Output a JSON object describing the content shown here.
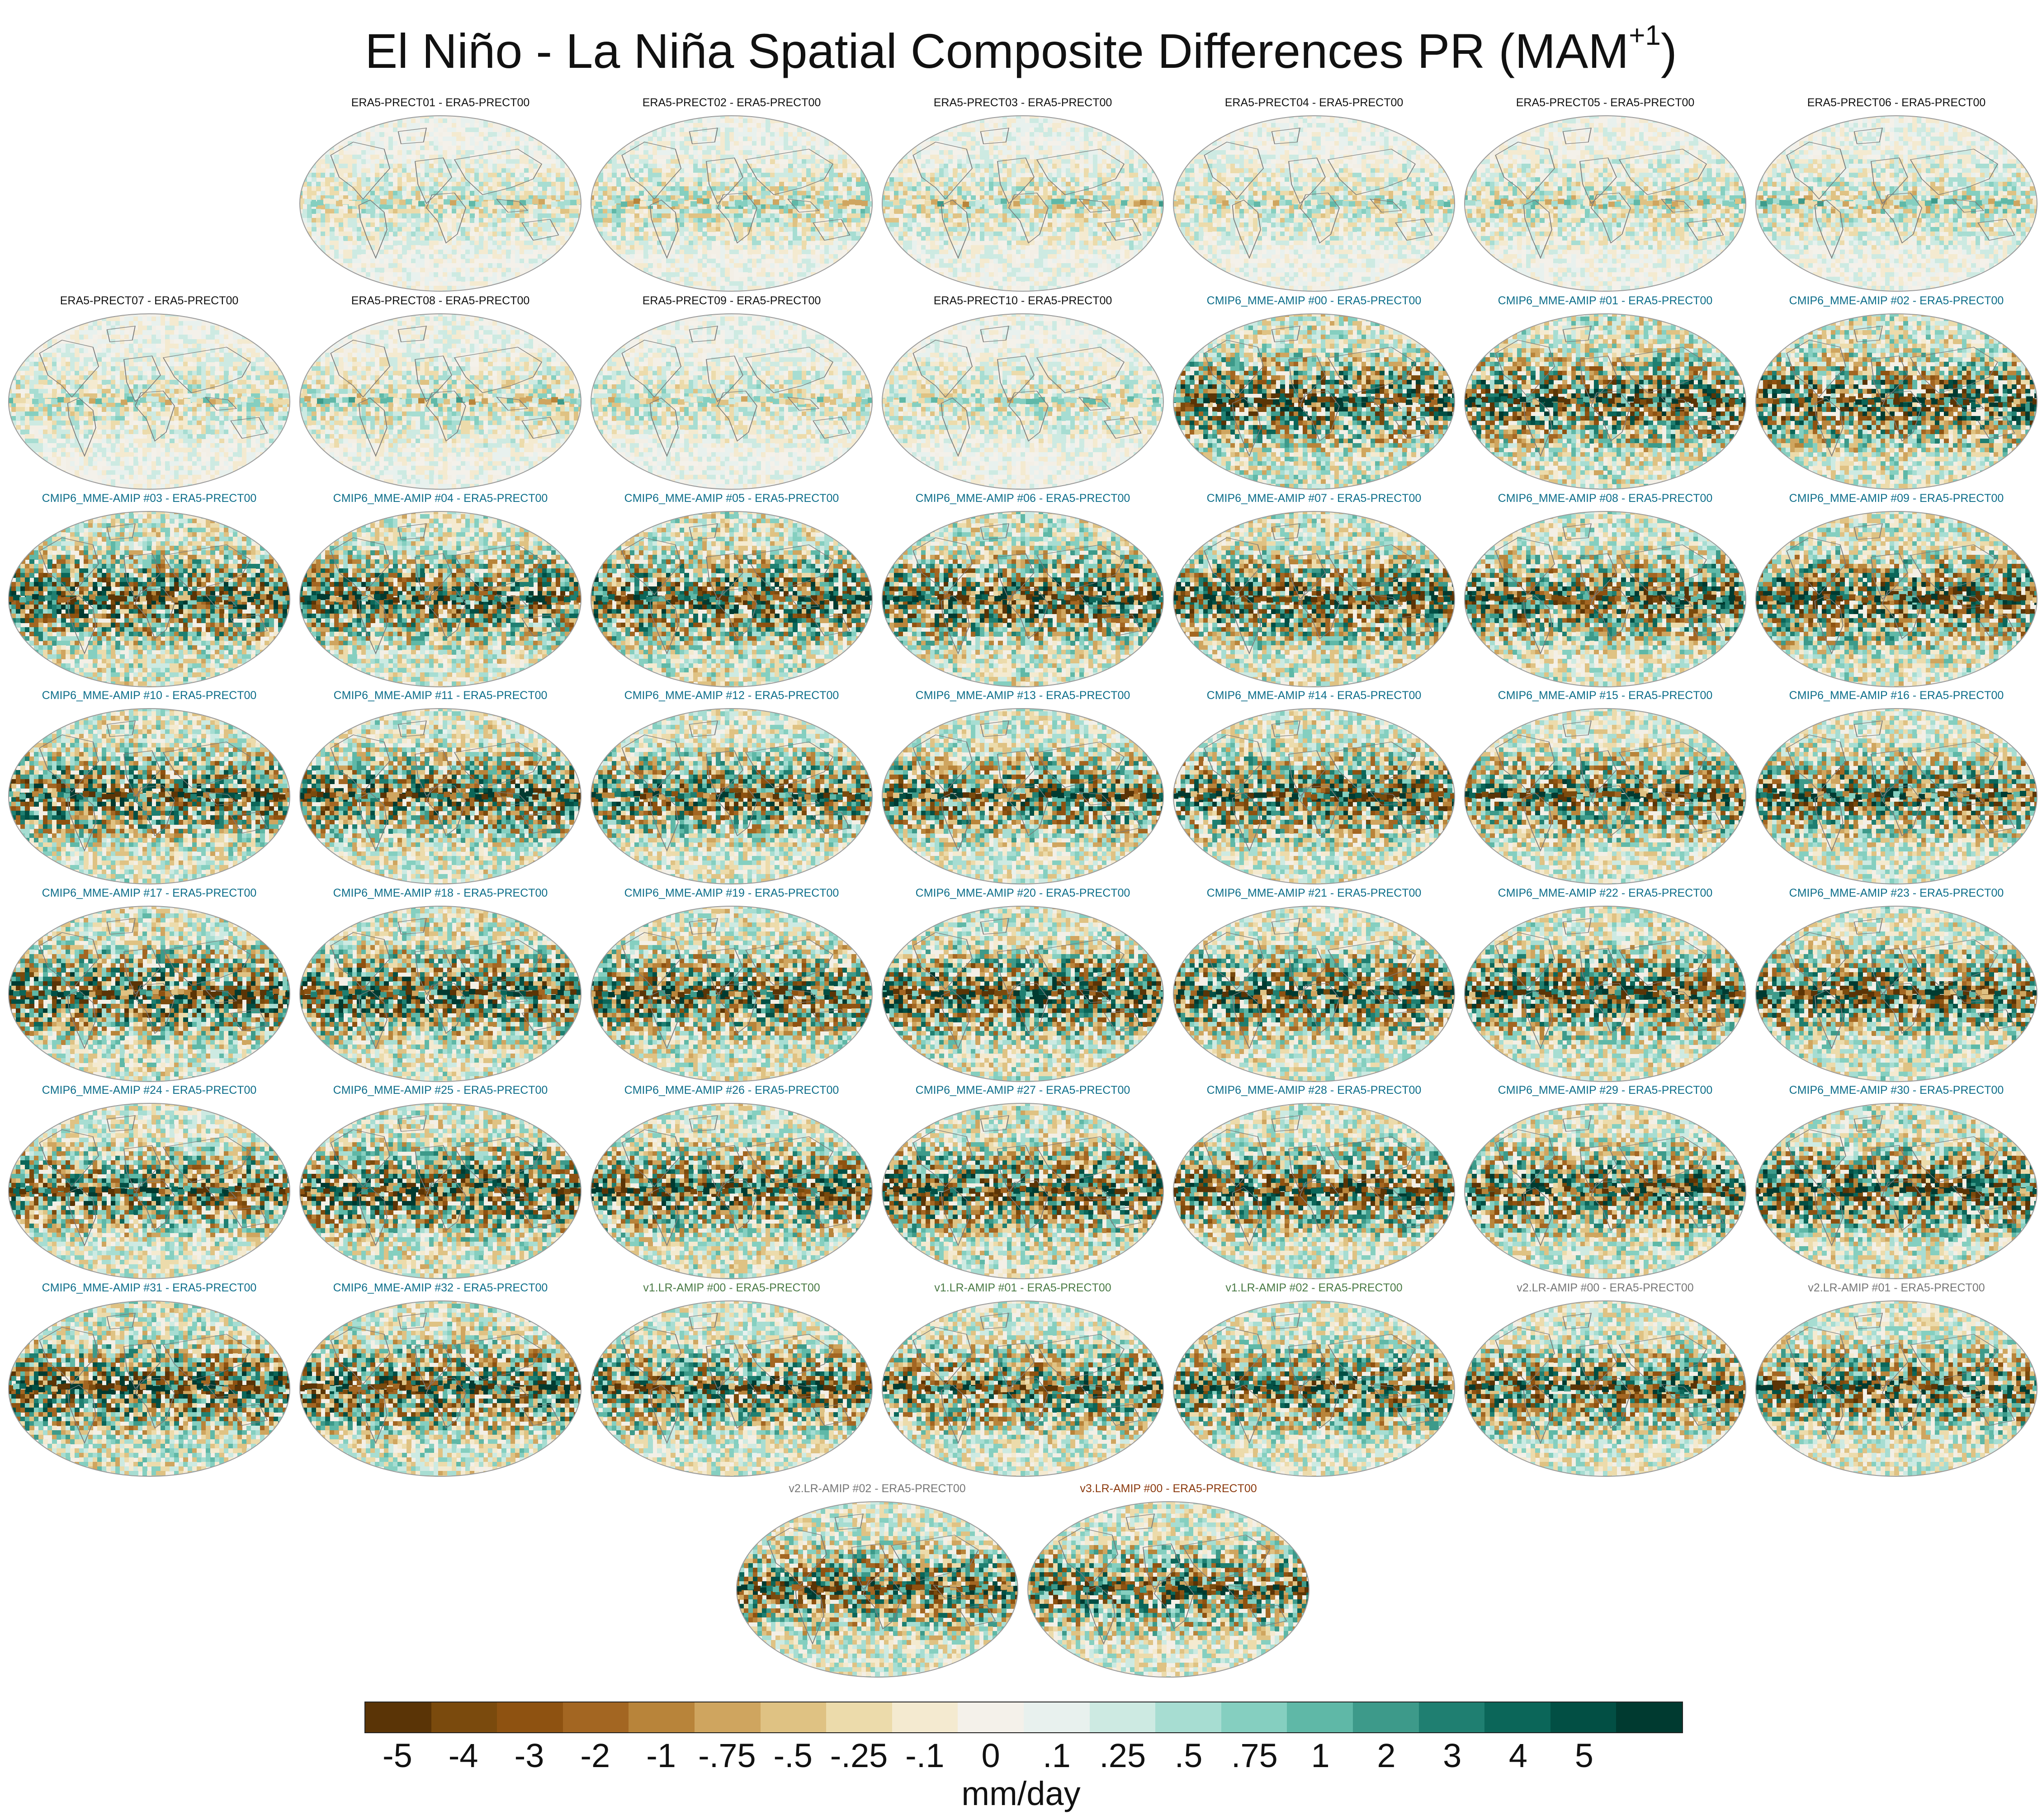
{
  "title": {
    "main": "El Niño - La Niña Spatial Composite Differences PR (MAM",
    "sup": "+1",
    "close": ")"
  },
  "label_colors": {
    "ERA5": "#111111",
    "CMIP6": "#0d6e8a",
    "v1": "#4a7a45",
    "v2": "#777777",
    "v3": "#8b3a0e"
  },
  "map_style": {
    "ocean": "#f3efe6",
    "coastline": "#7a7a7a",
    "border": "#9a9a9a"
  },
  "panels": [
    {
      "label": "ERA5-PRECT01 - ERA5-PRECT00",
      "group": "ERA5",
      "intensity": 0.3
    },
    {
      "label": "ERA5-PRECT02 - ERA5-PRECT00",
      "group": "ERA5",
      "intensity": 0.35
    },
    {
      "label": "ERA5-PRECT03 - ERA5-PRECT00",
      "group": "ERA5",
      "intensity": 0.33
    },
    {
      "label": "ERA5-PRECT04 - ERA5-PRECT00",
      "group": "ERA5",
      "intensity": 0.3
    },
    {
      "label": "ERA5-PRECT05 - ERA5-PRECT00",
      "group": "ERA5",
      "intensity": 0.34
    },
    {
      "label": "ERA5-PRECT06 - ERA5-PRECT00",
      "group": "ERA5",
      "intensity": 0.36
    },
    {
      "label": "ERA5-PRECT07 - ERA5-PRECT00",
      "group": "ERA5",
      "intensity": 0.32
    },
    {
      "label": "ERA5-PRECT08 - ERA5-PRECT00",
      "group": "ERA5",
      "intensity": 0.34
    },
    {
      "label": "ERA5-PRECT09 - ERA5-PRECT00",
      "group": "ERA5",
      "intensity": 0.3
    },
    {
      "label": "ERA5-PRECT10 - ERA5-PRECT00",
      "group": "ERA5",
      "intensity": 0.31
    },
    {
      "label": "CMIP6_MME-AMIP  #00 - ERA5-PRECT00",
      "group": "CMIP6",
      "intensity": 0.95
    },
    {
      "label": "CMIP6_MME-AMIP  #01 - ERA5-PRECT00",
      "group": "CMIP6",
      "intensity": 0.95
    },
    {
      "label": "CMIP6_MME-AMIP  #02 - ERA5-PRECT00",
      "group": "CMIP6",
      "intensity": 0.95
    },
    {
      "label": "CMIP6_MME-AMIP  #03 - ERA5-PRECT00",
      "group": "CMIP6",
      "intensity": 0.95
    },
    {
      "label": "CMIP6_MME-AMIP  #04 - ERA5-PRECT00",
      "group": "CMIP6",
      "intensity": 0.9
    },
    {
      "label": "CMIP6_MME-AMIP  #05 - ERA5-PRECT00",
      "group": "CMIP6",
      "intensity": 0.95
    },
    {
      "label": "CMIP6_MME-AMIP  #06 - ERA5-PRECT00",
      "group": "CMIP6",
      "intensity": 0.95
    },
    {
      "label": "CMIP6_MME-AMIP  #07 - ERA5-PRECT00",
      "group": "CMIP6",
      "intensity": 0.95
    },
    {
      "label": "CMIP6_MME-AMIP  #08 - ERA5-PRECT00",
      "group": "CMIP6",
      "intensity": 0.9
    },
    {
      "label": "CMIP6_MME-AMIP  #09 - ERA5-PRECT00",
      "group": "CMIP6",
      "intensity": 0.95
    },
    {
      "label": "CMIP6_MME-AMIP  #10 - ERA5-PRECT00",
      "group": "CMIP6",
      "intensity": 0.9
    },
    {
      "label": "CMIP6_MME-AMIP  #11 - ERA5-PRECT00",
      "group": "CMIP6",
      "intensity": 0.9
    },
    {
      "label": "CMIP6_MME-AMIP  #12 - ERA5-PRECT00",
      "group": "CMIP6",
      "intensity": 0.85
    },
    {
      "label": "CMIP6_MME-AMIP  #13 - ERA5-PRECT00",
      "group": "CMIP6",
      "intensity": 0.85
    },
    {
      "label": "CMIP6_MME-AMIP  #14 - ERA5-PRECT00",
      "group": "CMIP6",
      "intensity": 0.9
    },
    {
      "label": "CMIP6_MME-AMIP  #15 - ERA5-PRECT00",
      "group": "CMIP6",
      "intensity": 0.85
    },
    {
      "label": "CMIP6_MME-AMIP  #16 - ERA5-PRECT00",
      "group": "CMIP6",
      "intensity": 0.85
    },
    {
      "label": "CMIP6_MME-AMIP  #17 - ERA5-PRECT00",
      "group": "CMIP6",
      "intensity": 0.95
    },
    {
      "label": "CMIP6_MME-AMIP  #18 - ERA5-PRECT00",
      "group": "CMIP6",
      "intensity": 0.95
    },
    {
      "label": "CMIP6_MME-AMIP  #19 - ERA5-PRECT00",
      "group": "CMIP6",
      "intensity": 0.9
    },
    {
      "label": "CMIP6_MME-AMIP  #20 - ERA5-PRECT00",
      "group": "CMIP6",
      "intensity": 0.95
    },
    {
      "label": "CMIP6_MME-AMIP  #21 - ERA5-PRECT00",
      "group": "CMIP6",
      "intensity": 0.9
    },
    {
      "label": "CMIP6_MME-AMIP  #22 - ERA5-PRECT00",
      "group": "CMIP6",
      "intensity": 0.9
    },
    {
      "label": "CMIP6_MME-AMIP  #23 - ERA5-PRECT00",
      "group": "CMIP6",
      "intensity": 0.9
    },
    {
      "label": "CMIP6_MME-AMIP  #24 - ERA5-PRECT00",
      "group": "CMIP6",
      "intensity": 0.85
    },
    {
      "label": "CMIP6_MME-AMIP  #25 - ERA5-PRECT00",
      "group": "CMIP6",
      "intensity": 0.95
    },
    {
      "label": "CMIP6_MME-AMIP  #26 - ERA5-PRECT00",
      "group": "CMIP6",
      "intensity": 0.9
    },
    {
      "label": "CMIP6_MME-AMIP  #27 - ERA5-PRECT00",
      "group": "CMIP6",
      "intensity": 0.95
    },
    {
      "label": "CMIP6_MME-AMIP  #28 - ERA5-PRECT00",
      "group": "CMIP6",
      "intensity": 0.9
    },
    {
      "label": "CMIP6_MME-AMIP  #29 - ERA5-PRECT00",
      "group": "CMIP6",
      "intensity": 0.9
    },
    {
      "label": "CMIP6_MME-AMIP  #30 - ERA5-PRECT00",
      "group": "CMIP6",
      "intensity": 0.95
    },
    {
      "label": "CMIP6_MME-AMIP  #31 - ERA5-PRECT00",
      "group": "CMIP6",
      "intensity": 0.95
    },
    {
      "label": "CMIP6_MME-AMIP  #32 - ERA5-PRECT00",
      "group": "CMIP6",
      "intensity": 0.95
    },
    {
      "label": "v1.LR-AMIP  #00 - ERA5-PRECT00",
      "group": "v1",
      "intensity": 0.85
    },
    {
      "label": "v1.LR-AMIP  #01 - ERA5-PRECT00",
      "group": "v1",
      "intensity": 0.85
    },
    {
      "label": "v1.LR-AMIP  #02 - ERA5-PRECT00",
      "group": "v1",
      "intensity": 0.85
    },
    {
      "label": "v2.LR-AMIP  #00 - ERA5-PRECT00",
      "group": "v2",
      "intensity": 0.85
    },
    {
      "label": "v2.LR-AMIP  #01 - ERA5-PRECT00",
      "group": "v2",
      "intensity": 0.85
    },
    {
      "label": "v2.LR-AMIP  #02 - ERA5-PRECT00",
      "group": "v2",
      "intensity": 0.85
    },
    {
      "label": "v3.LR-AMIP  #00 - ERA5-PRECT00",
      "group": "v3",
      "intensity": 0.85
    }
  ],
  "colorbar": {
    "colors": [
      "#5a3406",
      "#7a4a0d",
      "#8e5211",
      "#a36622",
      "#b8843a",
      "#cfa55f",
      "#dfc283",
      "#ecdbab",
      "#f4ead0",
      "#f4f1ea",
      "#e8f1ee",
      "#cdeae2",
      "#a7ddd2",
      "#85cfc0",
      "#5fb8a7",
      "#3d9a8a",
      "#1f7f71",
      "#0b6659",
      "#024f44",
      "#003a30"
    ],
    "ticks": [
      "-5",
      "-4",
      "-3",
      "-2",
      "-1",
      "-.75",
      "-.5",
      "-.25",
      "-.1",
      "0",
      ".1",
      ".25",
      ".5",
      ".75",
      "1",
      "2",
      "3",
      "4",
      "5"
    ],
    "units": "mm/day"
  }
}
